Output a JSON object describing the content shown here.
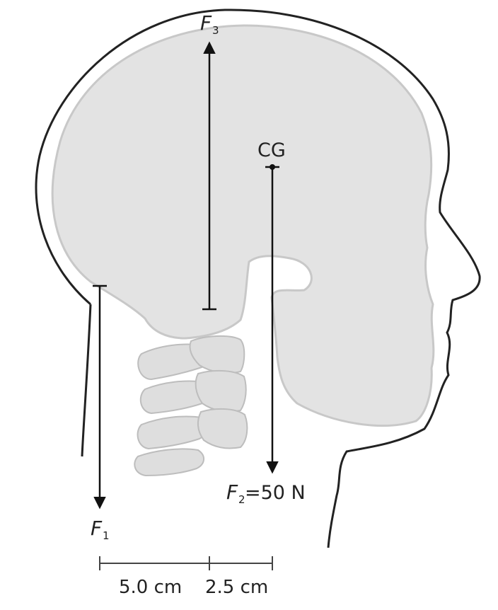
{
  "labels": {
    "cg": "CG",
    "f1_symbol": "F",
    "f1_sub": "1",
    "f2_symbol": "F",
    "f2_sub": "2",
    "f2_value": "=50 N",
    "f3_symbol": "F",
    "f3_sub": "3"
  },
  "scale_bar": {
    "seg1": "5.0 cm",
    "seg2": "2.5 cm"
  },
  "colors": {
    "outline": "#222222",
    "skull_fill": "#e3e3e3",
    "skull_stroke": "#c8c8c8",
    "spine_fill": "#dedede",
    "spine_stroke": "#bdbdbd",
    "arrow": "#111111"
  }
}
